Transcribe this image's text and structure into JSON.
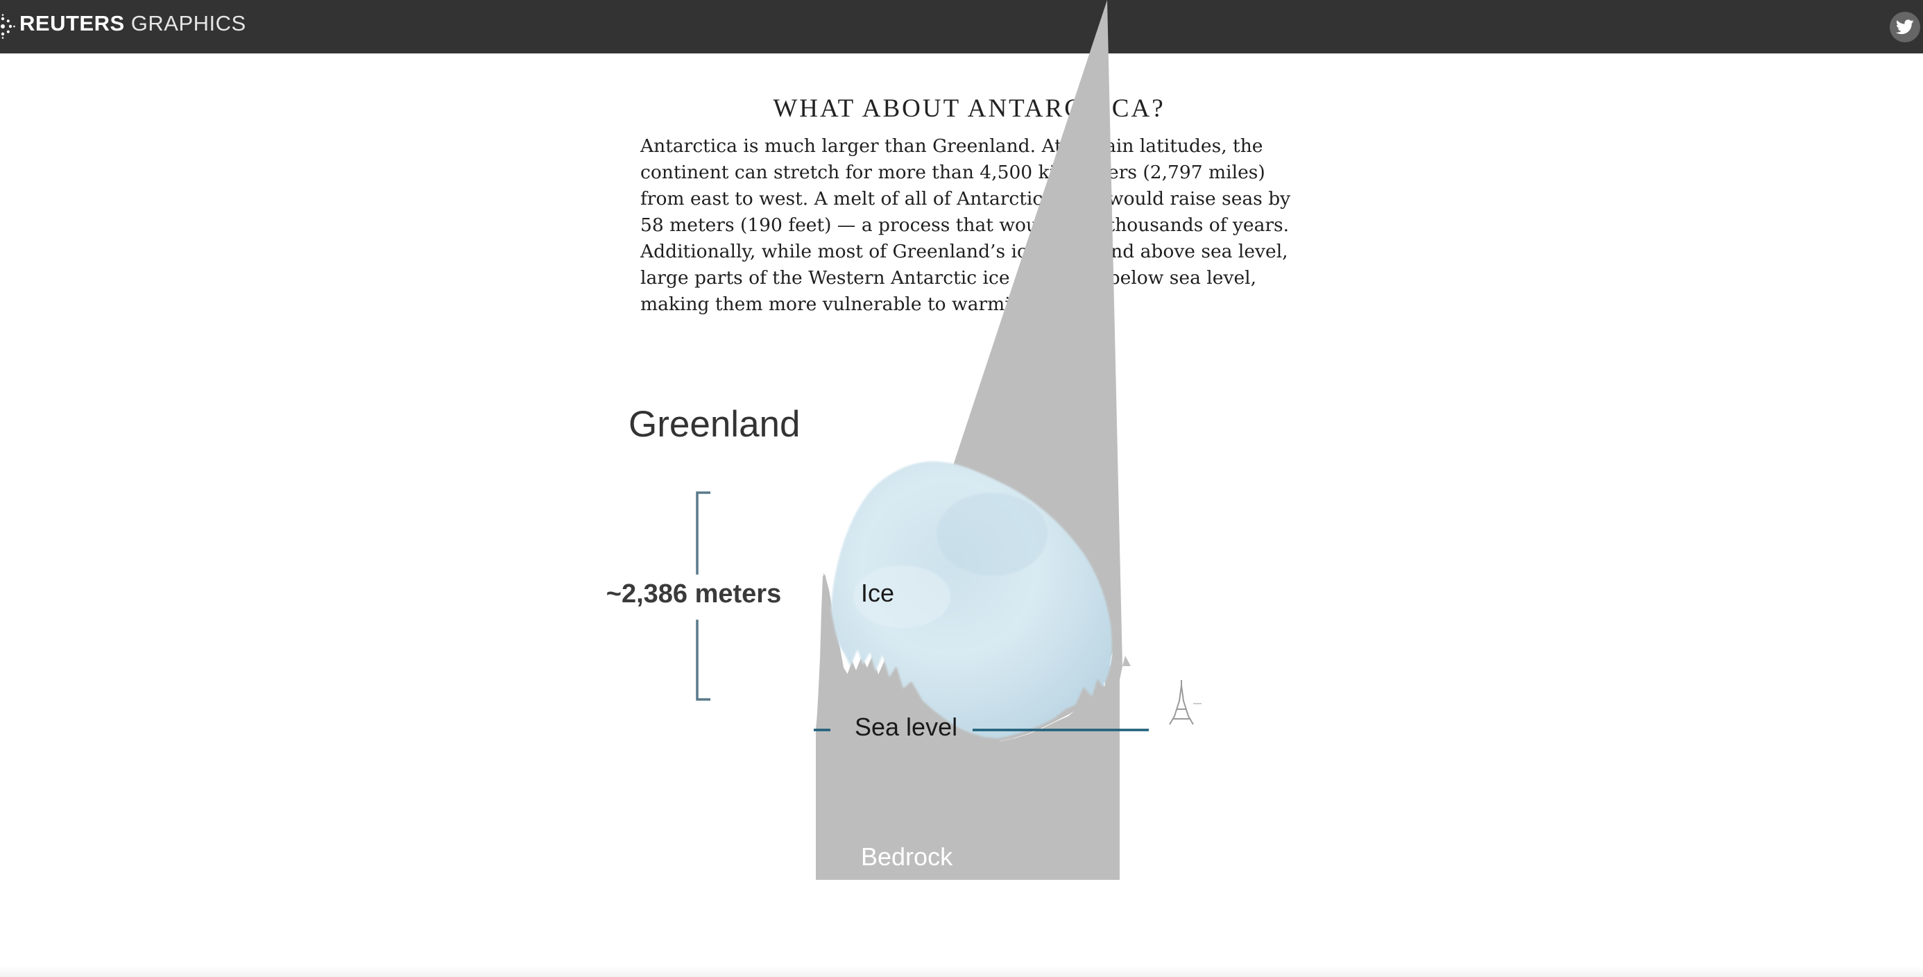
{
  "header": {
    "brand": "REUTERS",
    "section": "GRAPHICS",
    "icons": {
      "logo": "reuters-logo-icon",
      "share": "twitter-icon"
    },
    "colors": {
      "bar": "#333333",
      "share_button": "#666666"
    }
  },
  "article": {
    "heading": "WHAT ABOUT ANTARCTICA?",
    "body": "Antarctica is much larger than Greenland. At certain latitudes, the continent can stretch for more than 4,500 kilometers (2,797 miles) from east to west. A melt of all of Antarctica’s ice would raise seas by 58 meters (190 feet) — a process that would take thousands of years. Additionally, while most of Greenland’s ice is on land above sea level, large parts of the Western Antarctic ice sheet are below sea level, making them more vulnerable to warming oceans."
  },
  "diagram": {
    "title": "Greenland",
    "measurement": "~2,386 meters",
    "labels": {
      "ice": "Ice",
      "sea_level": "Sea level",
      "bedrock": "Bedrock"
    },
    "icons": {
      "scale_reference": "eiffel-tower-icon"
    },
    "colors": {
      "ice": "#d4e8f1",
      "bedrock": "#bdbdbd",
      "sea_level_line": "#1f5f7a",
      "bracket": "#5a7a8c"
    }
  }
}
